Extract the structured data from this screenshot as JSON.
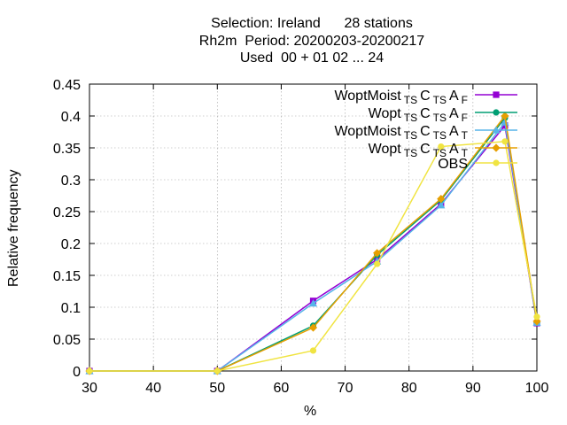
{
  "title_lines": [
    "Selection: Ireland      28 stations",
    "Rh2m  Period: 20200203-20200217",
    "Used  00 + 01 02 ... 24"
  ],
  "chart_data": {
    "type": "line",
    "xlabel": "%",
    "ylabel": "Relative frequency",
    "xlim": [
      30,
      100
    ],
    "ylim": [
      0,
      0.45
    ],
    "xticks": [
      "30",
      "40",
      "50",
      "60",
      "70",
      "80",
      "90",
      "100"
    ],
    "yticks": [
      "0",
      "0.05",
      "0.1",
      "0.15",
      "0.2",
      "0.25",
      "0.3",
      "0.35",
      "0.4",
      "0.45"
    ],
    "grid": true,
    "legend_position": "top-right",
    "series": [
      {
        "legend": {
          "base": "WoptMoist",
          "parts": [
            [
              "TS",
              "sub"
            ],
            [
              "C",
              ""
            ],
            [
              "TS",
              "sub"
            ],
            [
              "A",
              ""
            ],
            [
              "F",
              "sub"
            ]
          ]
        },
        "color": "#9400d3",
        "marker": "square-filled",
        "x": [
          30,
          50,
          65,
          75,
          85,
          95,
          100
        ],
        "y": [
          0,
          0,
          0.11,
          0.175,
          0.262,
          0.385,
          0.075
        ]
      },
      {
        "legend": {
          "base": "Wopt",
          "parts": [
            [
              "TS",
              "sub"
            ],
            [
              "C",
              ""
            ],
            [
              "TS",
              "sub"
            ],
            [
              "A",
              ""
            ],
            [
              "F",
              "sub"
            ]
          ]
        },
        "color": "#009e73",
        "marker": "circle-filled",
        "x": [
          30,
          50,
          65,
          75,
          85,
          95,
          100
        ],
        "y": [
          0,
          0,
          0.071,
          0.182,
          0.268,
          0.397,
          0.076
        ]
      },
      {
        "legend": {
          "base": "WoptMoist",
          "parts": [
            [
              "TS",
              "sub"
            ],
            [
              "C",
              ""
            ],
            [
              "TS",
              "sub"
            ],
            [
              "A",
              ""
            ],
            [
              "T",
              "sub"
            ]
          ]
        },
        "color": "#56b4e9",
        "marker": "triangle-filled",
        "x": [
          30,
          50,
          65,
          75,
          85,
          95,
          100
        ],
        "y": [
          0,
          0,
          0.106,
          0.172,
          0.26,
          0.39,
          0.076
        ]
      },
      {
        "legend": {
          "base": "Wopt",
          "parts": [
            [
              "TS",
              "sub"
            ],
            [
              "C",
              ""
            ],
            [
              "TS",
              "sub"
            ],
            [
              "A",
              ""
            ],
            [
              "T",
              "sub"
            ]
          ]
        },
        "color": "#e69f00",
        "marker": "diamond-filled",
        "x": [
          30,
          50,
          65,
          75,
          85,
          95,
          100
        ],
        "y": [
          0,
          0,
          0.068,
          0.185,
          0.27,
          0.4,
          0.078
        ]
      },
      {
        "legend": {
          "base": "OBS",
          "parts": []
        },
        "color": "#f0e442",
        "marker": "circle-filled",
        "x": [
          30,
          50,
          65,
          75,
          85,
          95,
          100
        ],
        "y": [
          0,
          0,
          0.032,
          0.168,
          0.352,
          0.36,
          0.085
        ]
      }
    ]
  }
}
